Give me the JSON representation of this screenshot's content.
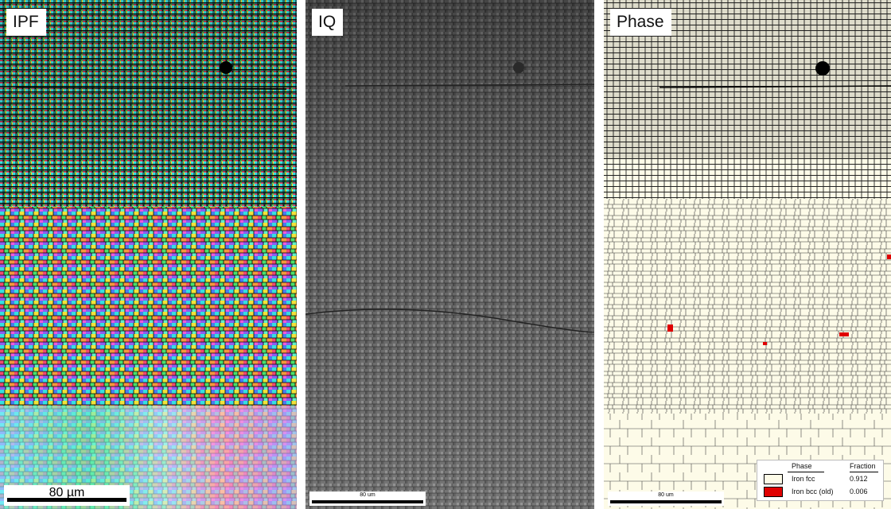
{
  "panels": {
    "ipf": {
      "label": "IPF",
      "scalebar": "80 µm"
    },
    "iq": {
      "label": "IQ",
      "scalebar": "80 um"
    },
    "phase": {
      "label": "Phase",
      "scalebar": "80 um"
    }
  },
  "legend": {
    "header_phase": "Phase",
    "header_fraction": "Fraction",
    "rows": [
      {
        "name": "Iron fcc",
        "fraction": "0.912",
        "color": "#fdfbe8"
      },
      {
        "name": "Iron bcc (old)",
        "fraction": "0.006",
        "color": "#e00000"
      }
    ]
  },
  "colors": {
    "fcc": "#fdfbe8",
    "bcc": "#e00000",
    "grain_boundary": "#000000"
  }
}
